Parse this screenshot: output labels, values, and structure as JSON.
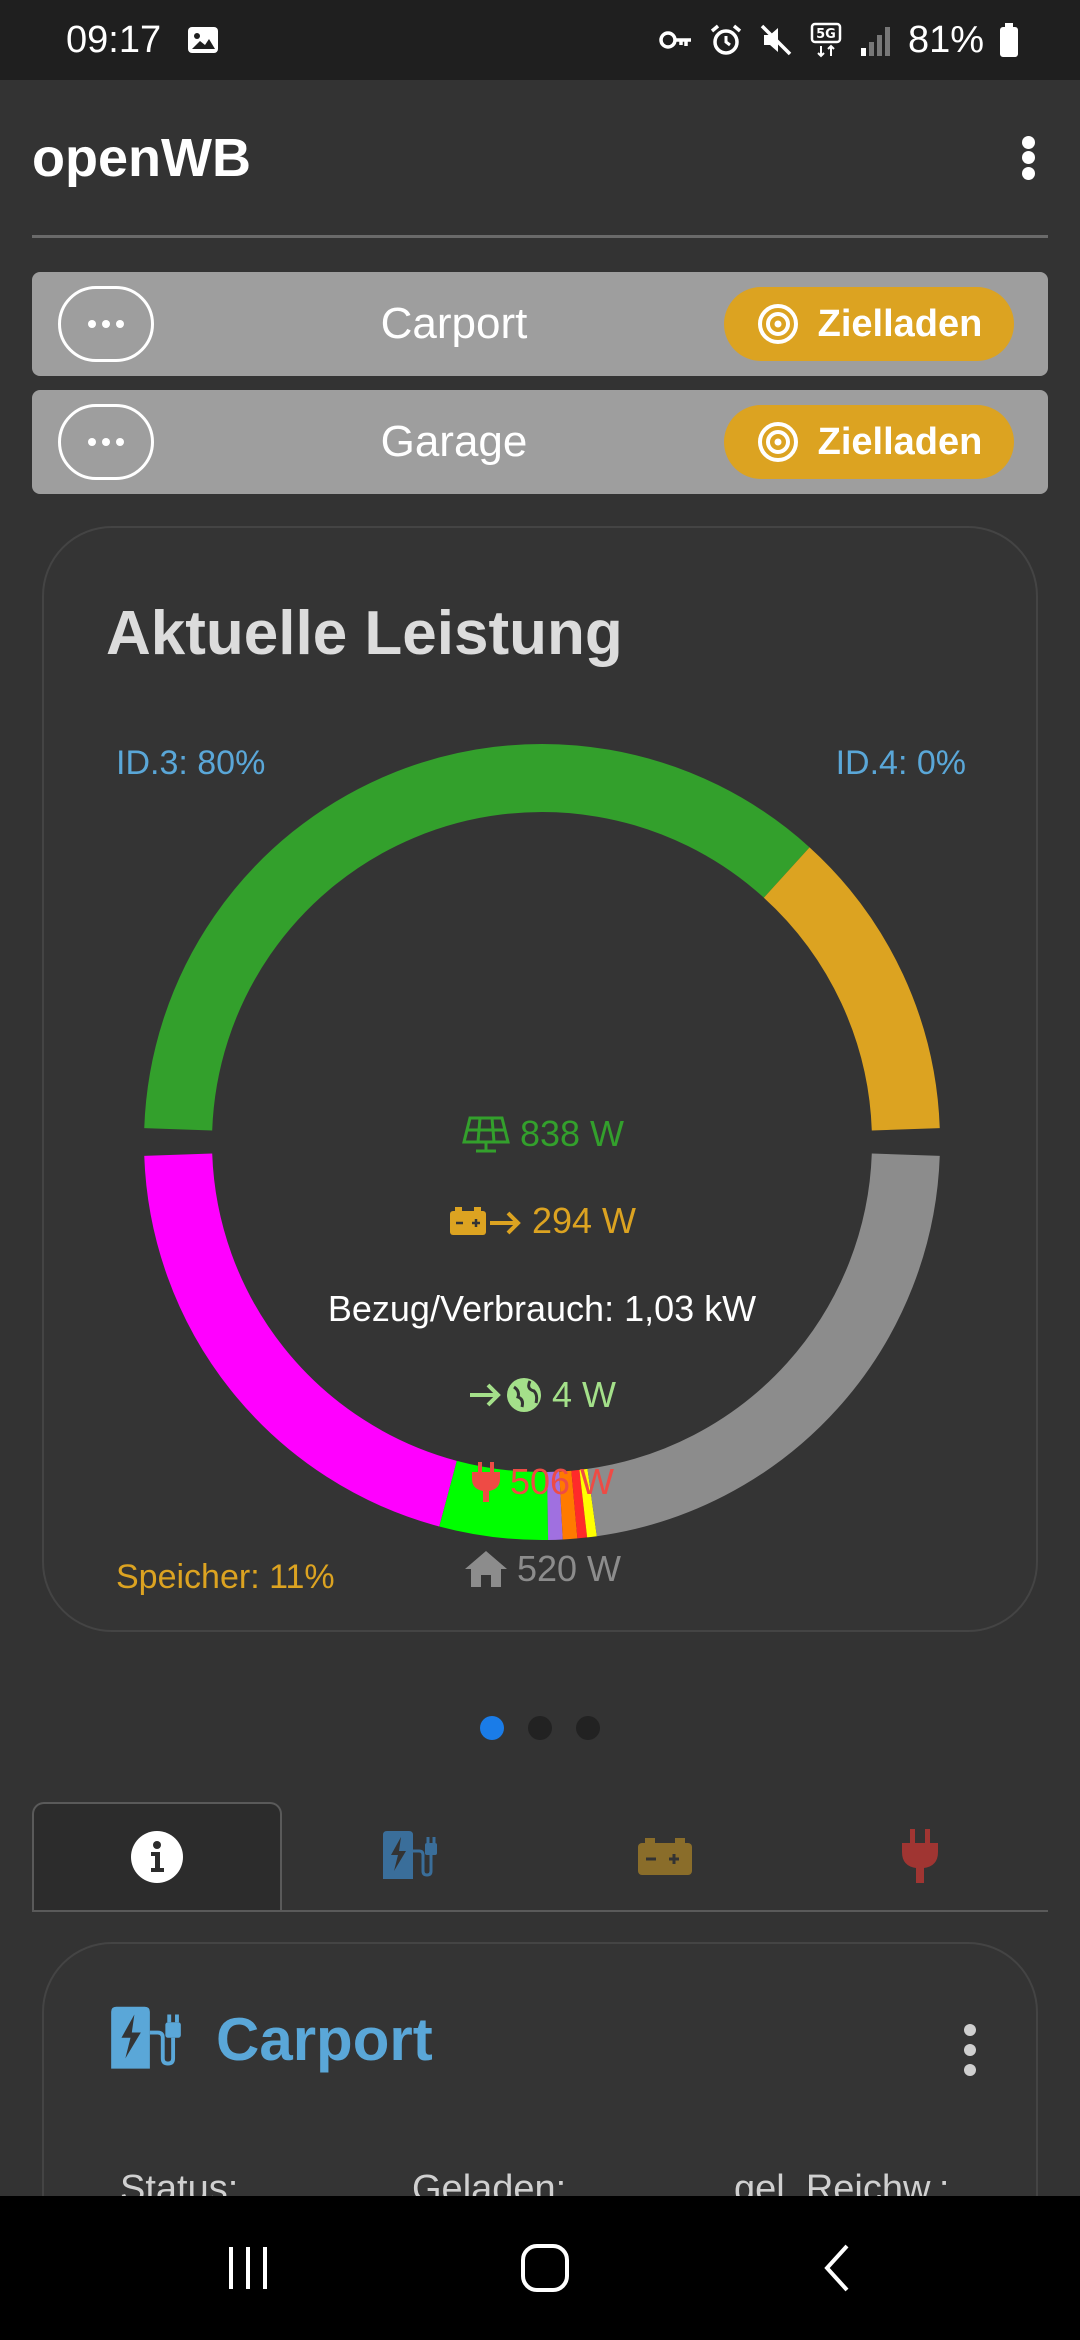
{
  "status_bar": {
    "time": "09:17",
    "battery": "81%",
    "network": "5G",
    "icons": [
      "image-icon",
      "vpn-key-icon",
      "alarm-icon",
      "mute-icon",
      "signal-icon",
      "battery-icon"
    ]
  },
  "header": {
    "title": "openWB",
    "menu_icon": "kebab-menu-icon"
  },
  "chargepoints": [
    {
      "name": "Carport",
      "action_label": "Zielladen",
      "action_icon": "target-icon"
    },
    {
      "name": "Garage",
      "action_label": "Zielladen",
      "action_icon": "target-icon"
    }
  ],
  "power_card": {
    "title": "Aktuelle Leistung",
    "label_top_left": "ID.3: 80%",
    "label_top_right": "ID.4: 0%",
    "label_bottom_left": "Speicher: 11%",
    "pv": "838 W",
    "battery_discharge": "294 W",
    "summary": "Bezug/Verbrauch: 1,03 kW",
    "grid": "4 W",
    "chargepoints": "506 W",
    "house": "520 W",
    "colors": {
      "pv": "#33a02c",
      "battery": "#dca321",
      "grid": "#a4e08a",
      "chargepoints": "#ee4b45",
      "house": "#8c8c8c",
      "id3_blue": "#5aa7d8"
    }
  },
  "donut": {
    "top_segments": [
      {
        "name": "pv",
        "fraction": 0.74,
        "color": "#33a02c"
      },
      {
        "name": "battery",
        "fraction": 0.26,
        "color": "#dca321"
      }
    ],
    "bottom_segments": [
      {
        "name": "magenta",
        "fraction": 0.415,
        "color": "#ff00ff"
      },
      {
        "name": "green",
        "fraction": 0.09,
        "color": "#00ff00"
      },
      {
        "name": "purple",
        "fraction": 0.012,
        "color": "#a070e0"
      },
      {
        "name": "orange",
        "fraction": 0.012,
        "color": "#ff7a00"
      },
      {
        "name": "red",
        "fraction": 0.008,
        "color": "#ff2a2a"
      },
      {
        "name": "yellow",
        "fraction": 0.008,
        "color": "#ffff00"
      },
      {
        "name": "house",
        "fraction": 0.455,
        "color": "#8c8c8c"
      }
    ]
  },
  "pager": {
    "count": 3,
    "active": 0
  },
  "tabs": [
    {
      "name": "info",
      "icon": "info-icon",
      "color": "#ffffff"
    },
    {
      "name": "chargepoint",
      "icon": "charging-station-icon",
      "color": "#3a6e9a"
    },
    {
      "name": "battery",
      "icon": "battery-icon",
      "color": "#8a6d2a"
    },
    {
      "name": "plug",
      "icon": "plug-icon",
      "color": "#a03532"
    }
  ],
  "detail_card": {
    "title": "Carport",
    "icon": "charging-station-icon",
    "columns": [
      "Status:",
      "Geladen:",
      "gel. Reichw.:"
    ]
  },
  "navbar": {
    "icons": [
      "recents-icon",
      "home-icon",
      "back-icon"
    ]
  }
}
